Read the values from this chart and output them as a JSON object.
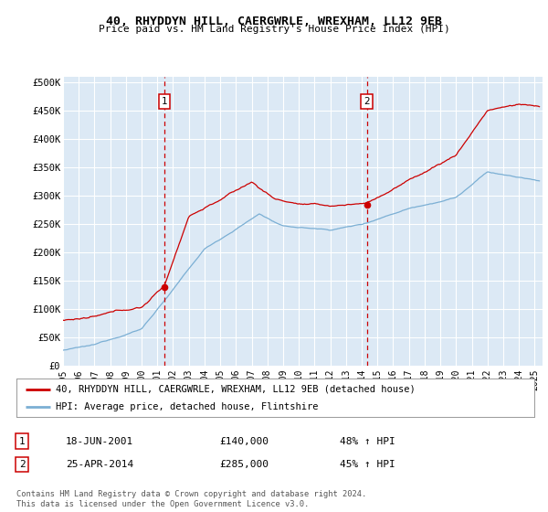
{
  "title": "40, RHYDDYN HILL, CAERGWRLE, WREXHAM, LL12 9EB",
  "subtitle": "Price paid vs. HM Land Registry's House Price Index (HPI)",
  "ylabel_ticks": [
    "£0",
    "£50K",
    "£100K",
    "£150K",
    "£200K",
    "£250K",
    "£300K",
    "£350K",
    "£400K",
    "£450K",
    "£500K"
  ],
  "ytick_values": [
    0,
    50000,
    100000,
    150000,
    200000,
    250000,
    300000,
    350000,
    400000,
    450000,
    500000
  ],
  "ylim": [
    0,
    510000
  ],
  "xlim_start": 1995.0,
  "xlim_end": 2025.5,
  "plot_bg": "#dce9f5",
  "grid_color": "#ffffff",
  "sale1_date": 2001.46,
  "sale1_price": 140000,
  "sale2_date": 2014.32,
  "sale2_price": 285000,
  "line1_color": "#cc0000",
  "line2_color": "#7bafd4",
  "marker1_label": "1",
  "marker2_label": "2",
  "legend_line1": "40, RHYDDYN HILL, CAERGWRLE, WREXHAM, LL12 9EB (detached house)",
  "legend_line2": "HPI: Average price, detached house, Flintshire",
  "table_row1_num": "1",
  "table_row1_date": "18-JUN-2001",
  "table_row1_price": "£140,000",
  "table_row1_hpi": "48% ↑ HPI",
  "table_row2_num": "2",
  "table_row2_date": "25-APR-2014",
  "table_row2_price": "£285,000",
  "table_row2_hpi": "45% ↑ HPI",
  "footnote": "Contains HM Land Registry data © Crown copyright and database right 2024.\nThis data is licensed under the Open Government Licence v3.0.",
  "xtick_years": [
    1995,
    1996,
    1997,
    1998,
    1999,
    2000,
    2001,
    2002,
    2003,
    2004,
    2005,
    2006,
    2007,
    2008,
    2009,
    2010,
    2011,
    2012,
    2013,
    2014,
    2015,
    2016,
    2017,
    2018,
    2019,
    2020,
    2021,
    2022,
    2023,
    2024,
    2025
  ]
}
